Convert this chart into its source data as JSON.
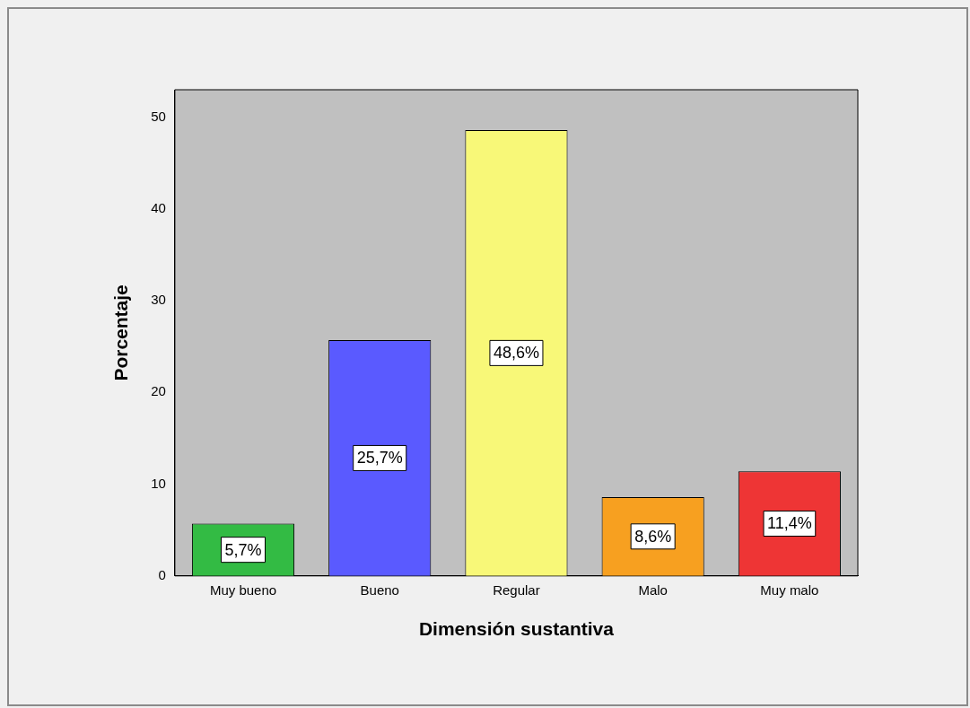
{
  "chart_data": {
    "type": "bar",
    "xlabel": "Dimensión sustantiva",
    "ylabel": "Porcentaje",
    "categories": [
      "Muy bueno",
      "Bueno",
      "Regular",
      "Malo",
      "Muy malo"
    ],
    "values": [
      5.7,
      25.7,
      48.6,
      8.6,
      11.4
    ],
    "colors": [
      "#33bb44",
      "#5a5aff",
      "#f8f878",
      "#f7a020",
      "#ee3535"
    ],
    "value_labels": [
      "5,7%",
      "25,7%",
      "48,6%",
      "8,6%",
      "11,4%"
    ],
    "ylim": [
      0,
      53
    ],
    "yticks": [
      0,
      10,
      20,
      30,
      40,
      50
    ],
    "grid": false,
    "legend": false
  }
}
